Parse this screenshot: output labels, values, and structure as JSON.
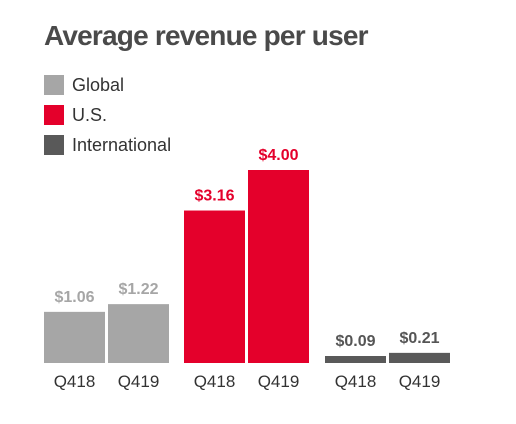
{
  "chart_data": {
    "type": "bar",
    "title": "Average revenue per user",
    "categories": [
      "Q418",
      "Q419"
    ],
    "series": [
      {
        "name": "Global",
        "color": "#a6a6a6",
        "label_color": "#a6a6a6",
        "values": [
          1.06,
          1.22
        ],
        "labels": [
          "$1.06",
          "$1.22"
        ]
      },
      {
        "name": "U.S.",
        "color": "#e4002b",
        "label_color": "#e4002b",
        "values": [
          3.16,
          4.0
        ],
        "labels": [
          "$3.16",
          "$4.00"
        ]
      },
      {
        "name": "International",
        "color": "#595959",
        "label_color": "#555555",
        "values": [
          0.09,
          0.21
        ],
        "labels": [
          "$0.09",
          "$0.21"
        ]
      }
    ],
    "ylim": [
      0,
      4.0
    ],
    "grid": false,
    "legend_position": "top-left"
  }
}
